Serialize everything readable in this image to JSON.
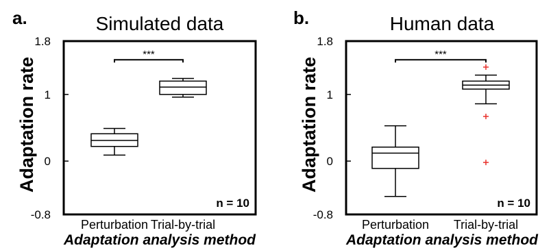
{
  "chart_data": [
    {
      "type": "box",
      "panel_label": "a.",
      "title": "Simulated data",
      "ylabel": "Adaptation rate",
      "xlabel": "Adaptation analysis method",
      "ylim": [
        -0.8,
        1.8
      ],
      "yticks": [
        {
          "value": 1.8,
          "label": "1.8"
        },
        {
          "value": 1.0,
          "label": "1"
        },
        {
          "value": 0.0,
          "label": "0"
        },
        {
          "value": -0.8,
          "label": "-0.8"
        }
      ],
      "categories": [
        "Perturbation",
        "Trial-by-trial"
      ],
      "boxes": [
        {
          "whisker_low": 0.09,
          "q1": 0.22,
          "median": 0.31,
          "q3": 0.41,
          "whisker_high": 0.49,
          "outliers": []
        },
        {
          "whisker_low": 0.96,
          "q1": 1.0,
          "median": 1.11,
          "q3": 1.2,
          "whisker_high": 1.24,
          "outliers": []
        }
      ],
      "significance": {
        "between": [
          0,
          1
        ],
        "label": "***",
        "y": 1.52
      },
      "n_label": "n = 10"
    },
    {
      "type": "box",
      "panel_label": "b.",
      "title": "Human data",
      "ylabel": "Adaptation rate",
      "xlabel": "Adaptation analysis method",
      "ylim": [
        -0.8,
        1.8
      ],
      "yticks": [
        {
          "value": 1.8,
          "label": "1.8"
        },
        {
          "value": 1.0,
          "label": "1"
        },
        {
          "value": 0.0,
          "label": "0"
        },
        {
          "value": -0.8,
          "label": "-0.8"
        }
      ],
      "categories": [
        "Perturbation",
        "Trial-by-trial"
      ],
      "boxes": [
        {
          "whisker_low": -0.53,
          "q1": -0.11,
          "median": 0.12,
          "q3": 0.21,
          "whisker_high": 0.53,
          "outliers": []
        },
        {
          "whisker_low": 0.86,
          "q1": 1.08,
          "median": 1.14,
          "q3": 1.2,
          "whisker_high": 1.29,
          "outliers": [
            1.41,
            0.67,
            -0.02
          ]
        }
      ],
      "significance": {
        "between": [
          0,
          1
        ],
        "label": "***",
        "y": 1.52
      },
      "n_label": "n = 10"
    }
  ],
  "colors": {
    "outlier": "#e8302a",
    "line": "#000000"
  }
}
